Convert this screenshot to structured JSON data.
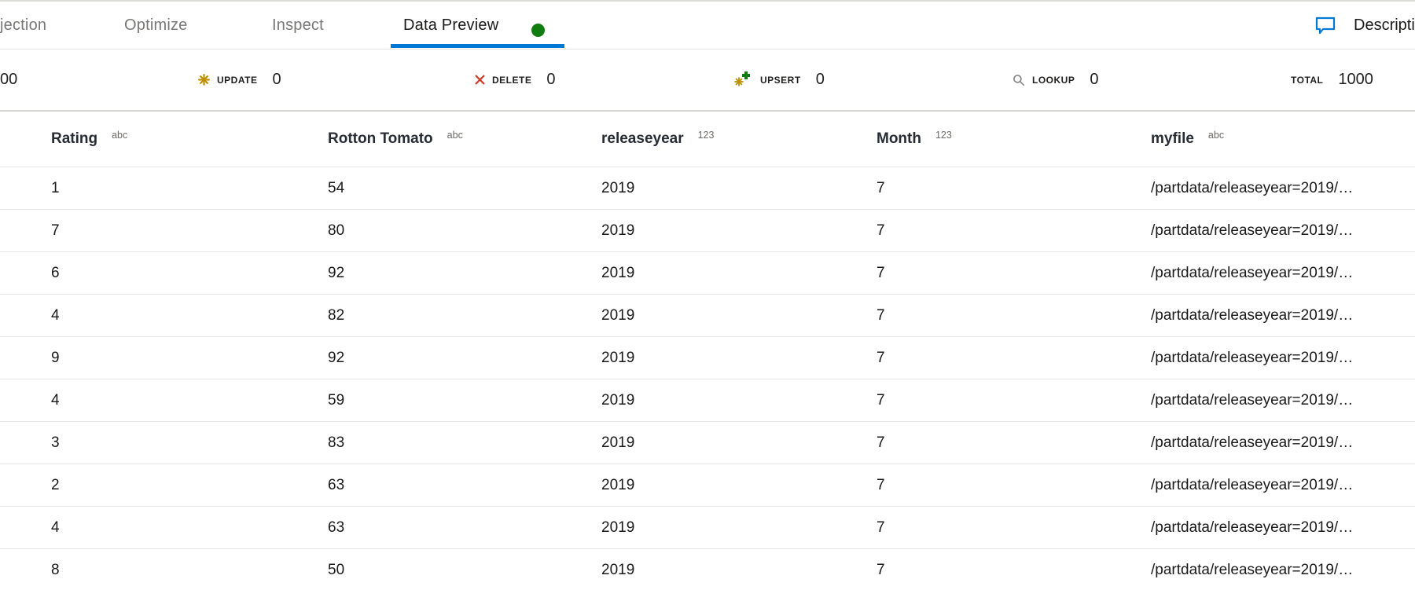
{
  "colors": {
    "accent_blue": "#0078d4",
    "status_dot_green": "#107c10",
    "update_gold": "#bf8f00",
    "delete_red": "#d13b28",
    "upsert_plus_green": "#107c10",
    "lookup_gray": "#8a8886"
  },
  "tabs": {
    "projection_partial": "jection",
    "optimize": "Optimize",
    "inspect": "Inspect",
    "data_preview": "Data Preview",
    "description": "Description"
  },
  "stats": {
    "insert_count_partial": "00",
    "update": {
      "label": "UPDATE",
      "value": "0"
    },
    "delete": {
      "label": "DELETE",
      "value": "0"
    },
    "upsert": {
      "label": "UPSERT",
      "value": "0"
    },
    "lookup": {
      "label": "LOOKUP",
      "value": "0"
    },
    "total": {
      "label": "TOTAL",
      "value": "1000"
    }
  },
  "table": {
    "columns": [
      {
        "name": "Rating",
        "type": "abc"
      },
      {
        "name": "Rotton Tomato",
        "type": "abc"
      },
      {
        "name": "releaseyear",
        "type": "123"
      },
      {
        "name": "Month",
        "type": "123"
      },
      {
        "name": "myfile",
        "type": "abc"
      }
    ],
    "rows": [
      [
        "1",
        "54",
        "2019",
        "7",
        "/partdata/releaseyear=2019/…"
      ],
      [
        "7",
        "80",
        "2019",
        "7",
        "/partdata/releaseyear=2019/…"
      ],
      [
        "6",
        "92",
        "2019",
        "7",
        "/partdata/releaseyear=2019/…"
      ],
      [
        "4",
        "82",
        "2019",
        "7",
        "/partdata/releaseyear=2019/…"
      ],
      [
        "9",
        "92",
        "2019",
        "7",
        "/partdata/releaseyear=2019/…"
      ],
      [
        "4",
        "59",
        "2019",
        "7",
        "/partdata/releaseyear=2019/…"
      ],
      [
        "3",
        "83",
        "2019",
        "7",
        "/partdata/releaseyear=2019/…"
      ],
      [
        "2",
        "63",
        "2019",
        "7",
        "/partdata/releaseyear=2019/…"
      ],
      [
        "4",
        "63",
        "2019",
        "7",
        "/partdata/releaseyear=2019/…"
      ],
      [
        "8",
        "50",
        "2019",
        "7",
        "/partdata/releaseyear=2019/…"
      ]
    ]
  }
}
